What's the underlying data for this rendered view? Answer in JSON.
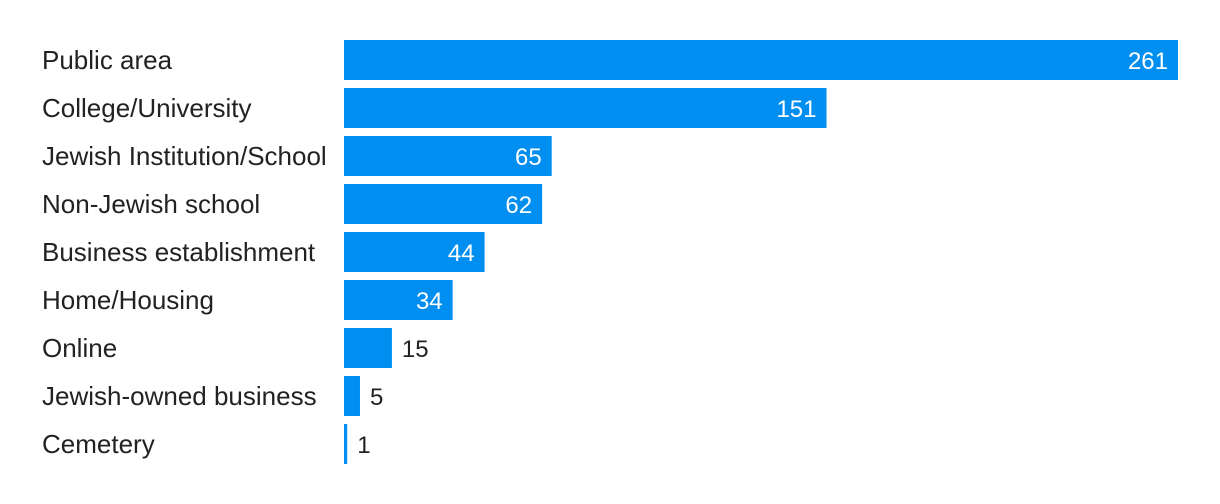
{
  "chart_data": {
    "type": "bar",
    "orientation": "horizontal",
    "categories": [
      "Public area",
      "College/University",
      "Jewish Institution/School",
      "Non-Jewish school",
      "Business establishment",
      "Home/Housing",
      "Online",
      "Jewish-owned business",
      "Cemetery"
    ],
    "values": [
      261,
      151,
      65,
      62,
      44,
      34,
      15,
      5,
      1
    ],
    "title": "",
    "xlabel": "",
    "ylabel": "",
    "xlim": [
      0,
      261
    ],
    "grid": false,
    "legend": "none",
    "colors": {
      "bar": "#008ef0",
      "label_inside": "#ffffff",
      "label_outside": "#222222",
      "category_text": "#222222"
    }
  }
}
